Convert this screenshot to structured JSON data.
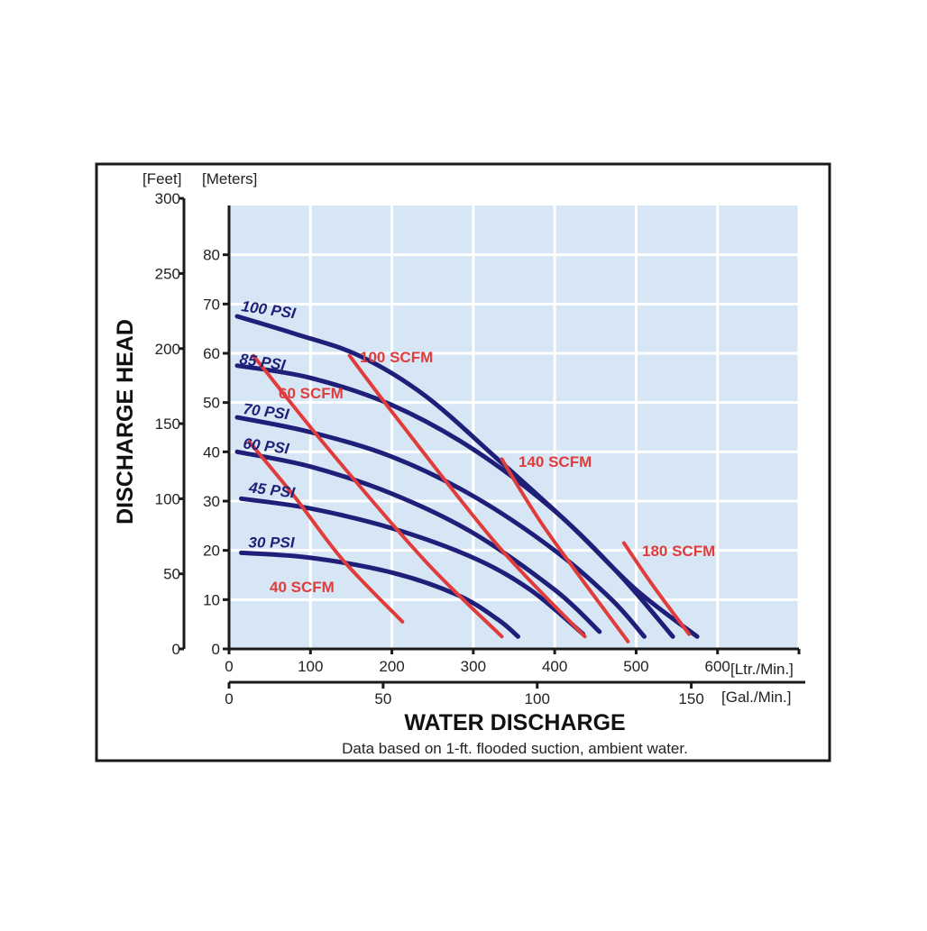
{
  "chart_data": {
    "type": "line",
    "title": "",
    "xlabel": "WATER DISCHARGE",
    "ylabel": "DISCHARGE HEAD",
    "note": "Data based on 1-ft. flooded suction, ambient water.",
    "x_axis_primary": {
      "unit_label": "[Ltr./Min.]",
      "range": [
        0,
        700
      ],
      "ticks": [
        "0",
        "100",
        "200",
        "300",
        "400",
        "500",
        "600"
      ]
    },
    "x_axis_secondary": {
      "unit_label": "[Gal./Min.]",
      "ticks": [
        "0",
        "50",
        "100",
        "150"
      ]
    },
    "y_axis_feet": {
      "unit_label": "[Feet]",
      "ticks": [
        "0",
        "50",
        "100",
        "150",
        "200",
        "250",
        "300"
      ]
    },
    "y_axis_meters": {
      "unit_label": "[Meters]",
      "range": [
        0,
        90
      ],
      "ticks": [
        "0",
        "10",
        "20",
        "30",
        "40",
        "50",
        "60",
        "70",
        "80"
      ]
    },
    "grid": true,
    "colors": {
      "plot_background": "#d7e6f4",
      "grid": "#ffffff",
      "pressure_curves": "#1f1f7a",
      "air_curves": "#e03c3c",
      "frame": "#1a1a1a"
    },
    "pressure_series": [
      {
        "name": "100 PSI",
        "x": [
          10,
          80,
          160,
          240,
          330,
          420,
          500,
          575
        ],
        "y": [
          67.5,
          64,
          59.5,
          51.5,
          38.5,
          25,
          12,
          2.5
        ]
      },
      {
        "name": "85 PSI",
        "x": [
          10,
          100,
          200,
          300,
          400,
          480,
          545
        ],
        "y": [
          57.5,
          55,
          49.5,
          40.5,
          28,
          15,
          2.5
        ]
      },
      {
        "name": "70 PSI",
        "x": [
          10,
          100,
          200,
          300,
          400,
          470,
          510
        ],
        "y": [
          47,
          44,
          39,
          31,
          20,
          10,
          2.5
        ]
      },
      {
        "name": "60 PSI",
        "x": [
          10,
          100,
          200,
          300,
          400,
          455
        ],
        "y": [
          40,
          37,
          31.5,
          23.5,
          12,
          3.5
        ]
      },
      {
        "name": "45 PSI",
        "x": [
          15,
          100,
          200,
          300,
          370,
          435
        ],
        "y": [
          30.5,
          28.5,
          24.5,
          18.5,
          12,
          3
        ]
      },
      {
        "name": "30 PSI",
        "x": [
          15,
          100,
          200,
          280,
          330,
          355
        ],
        "y": [
          19.5,
          18.5,
          15.5,
          11,
          6,
          2.5
        ]
      }
    ],
    "air_series": [
      {
        "name": "40 SCFM",
        "x": [
          25,
          80,
          140,
          213
        ],
        "y": [
          42,
          31,
          18,
          5.5
        ]
      },
      {
        "name": "60 SCFM",
        "x": [
          30,
          120,
          240,
          335
        ],
        "y": [
          59.5,
          41,
          18,
          2.5
        ]
      },
      {
        "name": "100 SCFM",
        "x": [
          148,
          210,
          330,
          437
        ],
        "y": [
          59.5,
          46,
          21,
          2.5
        ]
      },
      {
        "name": "140 SCFM",
        "x": [
          335,
          390,
          490
        ],
        "y": [
          38.5,
          24,
          1.5
        ]
      },
      {
        "name": "180 SCFM",
        "x": [
          485,
          520,
          565
        ],
        "y": [
          21.5,
          13,
          3
        ]
      }
    ]
  }
}
